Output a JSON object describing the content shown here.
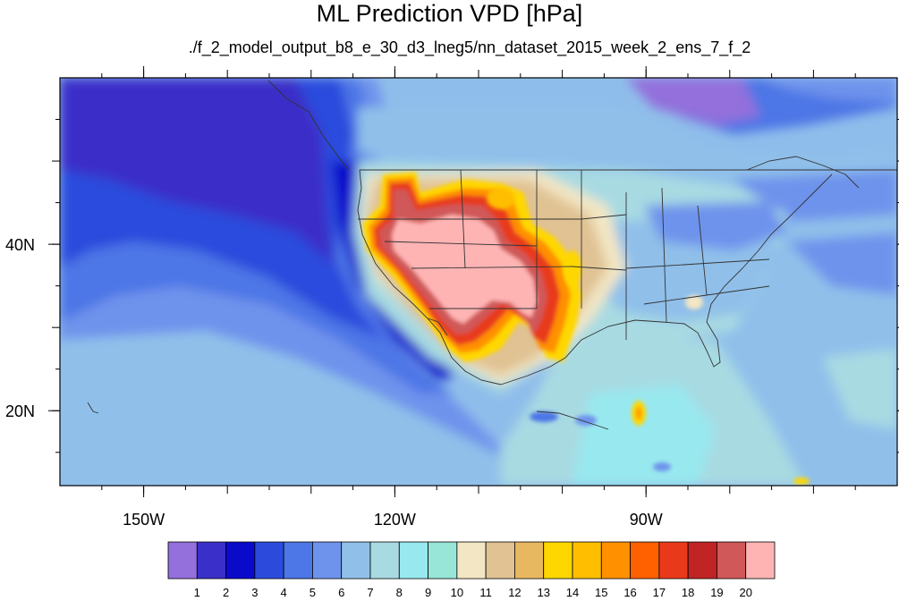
{
  "title": "ML Prediction VPD [hPa]",
  "subtitle": "./f_2_model_output_b8_e_30_d3_lneg5/nn_dataset_2015_week_2_ens_7_f_2",
  "map": {
    "projection": "cylindrical-equidistant",
    "lon_range": [
      -160,
      -60
    ],
    "lat_range": [
      11,
      60
    ],
    "x_ticks": [
      {
        "lon": -150,
        "label": "150W"
      },
      {
        "lon": -120,
        "label": "120W"
      },
      {
        "lon": -90,
        "label": "90W"
      }
    ],
    "y_ticks": [
      {
        "lat": 40,
        "label": "40N"
      },
      {
        "lat": 20,
        "label": "20N"
      }
    ]
  },
  "colorbar": {
    "levels": [
      "1",
      "2",
      "3",
      "4",
      "5",
      "6",
      "7",
      "8",
      "9",
      "10",
      "11",
      "12",
      "13",
      "14",
      "15",
      "16",
      "17",
      "18",
      "19",
      "20"
    ],
    "colors": [
      "#9370DB",
      "#3A2FC8",
      "#0A0ACB",
      "#2C4BDD",
      "#4D76E6",
      "#6E93EC",
      "#90C0EA",
      "#A8DAE2",
      "#98E8EF",
      "#97E6D8",
      "#F2E6C4",
      "#E0C293",
      "#E8B860",
      "#FFD700",
      "#FFBE00",
      "#FF9000",
      "#FF6000",
      "#E83A1A",
      "#C02425",
      "#D05858",
      "#FFB4B4"
    ]
  }
}
